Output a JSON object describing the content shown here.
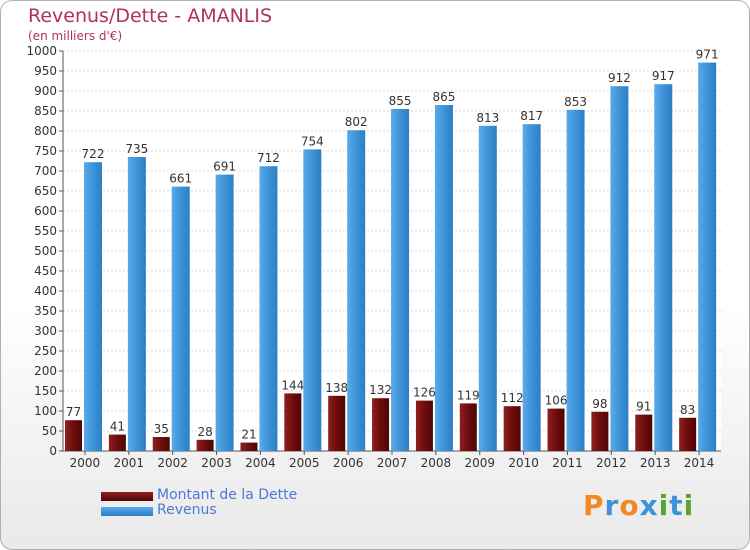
{
  "chart_data": {
    "type": "bar",
    "title": "Revenus/Dette - AMANLIS",
    "subtitle": "(en milliers d'€)",
    "categories": [
      "2000",
      "2001",
      "2002",
      "2003",
      "2004",
      "2005",
      "2006",
      "2007",
      "2008",
      "2009",
      "2010",
      "2011",
      "2012",
      "2013",
      "2014"
    ],
    "series": [
      {
        "name": "Montant de la Dette",
        "color": "#7a1010",
        "values": [
          77,
          41,
          35,
          28,
          21,
          144,
          138,
          132,
          126,
          119,
          112,
          106,
          98,
          91,
          83
        ]
      },
      {
        "name": "Revenus",
        "color": "#3d93d8",
        "values": [
          722,
          735,
          661,
          691,
          712,
          754,
          802,
          855,
          865,
          813,
          817,
          853,
          912,
          917,
          971
        ]
      }
    ],
    "ylim": [
      0,
      1000
    ],
    "yticks": [
      0,
      50,
      100,
      150,
      200,
      250,
      300,
      350,
      400,
      450,
      500,
      550,
      600,
      650,
      700,
      750,
      800,
      850,
      900,
      950,
      1000
    ],
    "grid": true,
    "legend_position": "bottom-left"
  },
  "logo": {
    "text": "Proxiti",
    "colors": [
      "#f08a24",
      "#3d93d8",
      "#f08a24",
      "#3d93d8",
      "#5aa52e",
      "#3d93d8",
      "#5aa52e"
    ]
  }
}
